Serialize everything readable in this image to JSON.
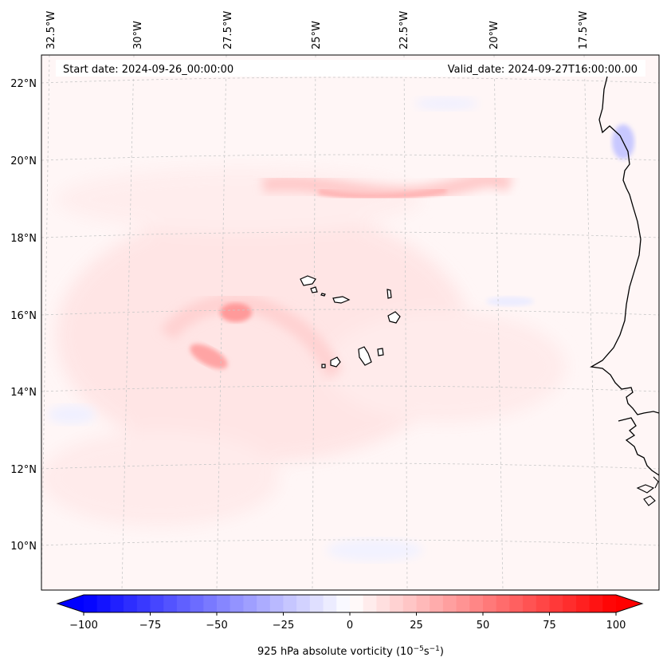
{
  "map": {
    "projection": "Lambert Conformal",
    "variable": "925 hPa absolute vorticity",
    "units_label": "925 hPa absolute vorticity (10",
    "units_exp1": "−5",
    "units_mid": "s",
    "units_exp2": "−1",
    "units_close": ")",
    "start_date_label": "Start date: 2024-09-26_00:00:00",
    "valid_date_label": "Valid_date: 2024-09-27T16:00:00.00",
    "extent": {
      "lon_min": -32.6,
      "lon_max": -16.2,
      "lat_min": 8.9,
      "lat_max": 22.8
    },
    "lon_labels": [
      "32.5°W",
      "30°W",
      "27.5°W",
      "25°W",
      "22.5°W",
      "20°W",
      "17.5°W"
    ],
    "lat_labels": [
      "22°N",
      "20°N",
      "18°N",
      "16°N",
      "14°N",
      "12°N",
      "10°N"
    ],
    "features": [
      {
        "name": "Cape Verde islands",
        "type": "island-group"
      },
      {
        "name": "West African coast",
        "type": "coastline"
      },
      {
        "name": "Vorticity maximum near 15–16°N, 27°W",
        "value": 35
      }
    ]
  },
  "colorbar": {
    "min": -100,
    "max": 100,
    "step": 5,
    "ticks": [
      "−100",
      "−75",
      "−50",
      "−25",
      "0",
      "25",
      "50",
      "75",
      "100"
    ],
    "cmap": "bwr",
    "low_color": "#0000ff",
    "mid_color": "#ffffff",
    "high_color": "#ff0000",
    "extend": "both"
  },
  "colors": {
    "ocean_base": "#fff6f6",
    "grid": "#c8c8c8",
    "coast": "#000000"
  }
}
